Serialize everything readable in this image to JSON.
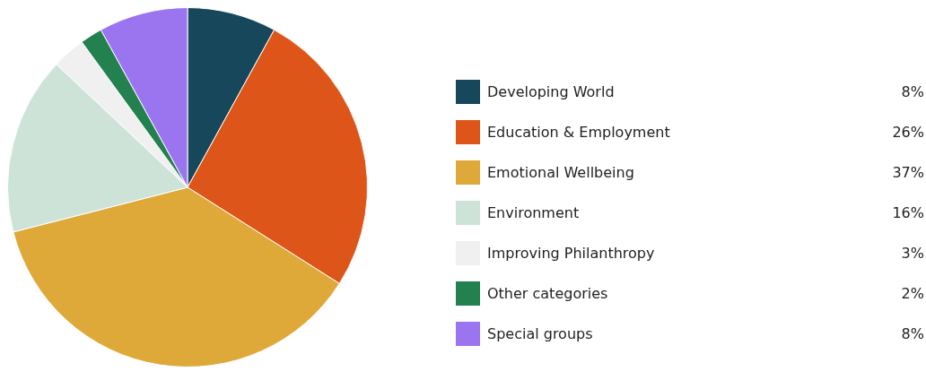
{
  "chart_data": {
    "type": "pie",
    "categories": [
      "Developing World",
      "Education & Employment",
      "Emotional Wellbeing",
      "Environment",
      "Improving Philanthropy",
      "Other categories",
      "Special groups"
    ],
    "values": [
      8,
      26,
      37,
      16,
      3,
      2,
      8
    ],
    "colors": [
      "#17475b",
      "#dd5518",
      "#dfa93a",
      "#cde3d8",
      "#f0f0f0",
      "#23814f",
      "#9b74f0"
    ],
    "value_labels": [
      "8%",
      "26%",
      "37%",
      "16%",
      "3%",
      "2%",
      "8%"
    ],
    "legend": "right"
  }
}
